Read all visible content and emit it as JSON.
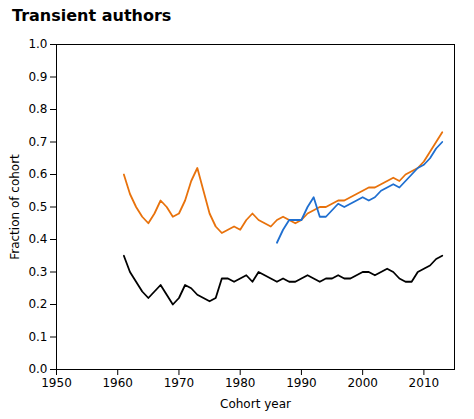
{
  "chart_data": {
    "type": "line",
    "title": "Transient authors",
    "xlabel": "Cohort year",
    "ylabel": "Fraction of cohort",
    "xlim": [
      1950,
      2015
    ],
    "ylim": [
      0.0,
      1.0
    ],
    "xticks": [
      1950,
      1960,
      1970,
      1980,
      1990,
      2000,
      2010
    ],
    "yticks": [
      {
        "value": 0.0,
        "label": "0.0"
      },
      0.1,
      0.2,
      0.3,
      0.4,
      0.5,
      0.6,
      0.7,
      0.8,
      0.9,
      {
        "value": 1.0,
        "label": "1.0"
      }
    ],
    "grid": false,
    "series": [
      {
        "color": "#E8720C",
        "x": [
          1961,
          1962,
          1963,
          1964,
          1965,
          1966,
          1967,
          1968,
          1969,
          1970,
          1971,
          1972,
          1973,
          1974,
          1975,
          1976,
          1977,
          1978,
          1979,
          1980,
          1981,
          1982,
          1983,
          1984,
          1985,
          1986,
          1987,
          1988,
          1989,
          1990,
          1991,
          1992,
          1993,
          1994,
          1995,
          1996,
          1997,
          1998,
          1999,
          2000,
          2001,
          2002,
          2003,
          2004,
          2005,
          2006,
          2007,
          2008,
          2009,
          2010,
          2011,
          2012,
          2013
        ],
        "values": [
          0.6,
          0.54,
          0.5,
          0.47,
          0.45,
          0.48,
          0.52,
          0.5,
          0.47,
          0.48,
          0.52,
          0.58,
          0.62,
          0.55,
          0.48,
          0.44,
          0.42,
          0.43,
          0.44,
          0.43,
          0.46,
          0.48,
          0.46,
          0.45,
          0.44,
          0.46,
          0.47,
          0.46,
          0.45,
          0.46,
          0.48,
          0.49,
          0.5,
          0.5,
          0.51,
          0.52,
          0.52,
          0.53,
          0.54,
          0.55,
          0.56,
          0.56,
          0.57,
          0.58,
          0.59,
          0.58,
          0.6,
          0.61,
          0.62,
          0.64,
          0.67,
          0.7,
          0.73
        ]
      },
      {
        "color": "#1F6FD0",
        "x": [
          1986,
          1987,
          1988,
          1989,
          1990,
          1991,
          1992,
          1993,
          1994,
          1995,
          1996,
          1997,
          1998,
          1999,
          2000,
          2001,
          2002,
          2003,
          2004,
          2005,
          2006,
          2007,
          2008,
          2009,
          2010,
          2011,
          2012,
          2013
        ],
        "values": [
          0.39,
          0.43,
          0.46,
          0.46,
          0.46,
          0.5,
          0.53,
          0.47,
          0.47,
          0.49,
          0.51,
          0.5,
          0.51,
          0.52,
          0.53,
          0.52,
          0.53,
          0.55,
          0.56,
          0.57,
          0.56,
          0.58,
          0.6,
          0.62,
          0.63,
          0.65,
          0.68,
          0.7
        ]
      },
      {
        "color": "#000000",
        "x": [
          1961,
          1962,
          1963,
          1964,
          1965,
          1966,
          1967,
          1968,
          1969,
          1970,
          1971,
          1972,
          1973,
          1974,
          1975,
          1976,
          1977,
          1978,
          1979,
          1980,
          1981,
          1982,
          1983,
          1984,
          1985,
          1986,
          1987,
          1988,
          1989,
          1990,
          1991,
          1992,
          1993,
          1994,
          1995,
          1996,
          1997,
          1998,
          1999,
          2000,
          2001,
          2002,
          2003,
          2004,
          2005,
          2006,
          2007,
          2008,
          2009,
          2010,
          2011,
          2012,
          2013
        ],
        "values": [
          0.35,
          0.3,
          0.27,
          0.24,
          0.22,
          0.24,
          0.26,
          0.23,
          0.2,
          0.22,
          0.26,
          0.25,
          0.23,
          0.22,
          0.21,
          0.22,
          0.28,
          0.28,
          0.27,
          0.28,
          0.29,
          0.27,
          0.3,
          0.29,
          0.28,
          0.27,
          0.28,
          0.27,
          0.27,
          0.28,
          0.29,
          0.28,
          0.27,
          0.28,
          0.28,
          0.29,
          0.28,
          0.28,
          0.29,
          0.3,
          0.3,
          0.29,
          0.3,
          0.31,
          0.3,
          0.28,
          0.27,
          0.27,
          0.3,
          0.31,
          0.32,
          0.34,
          0.35
        ]
      }
    ]
  }
}
